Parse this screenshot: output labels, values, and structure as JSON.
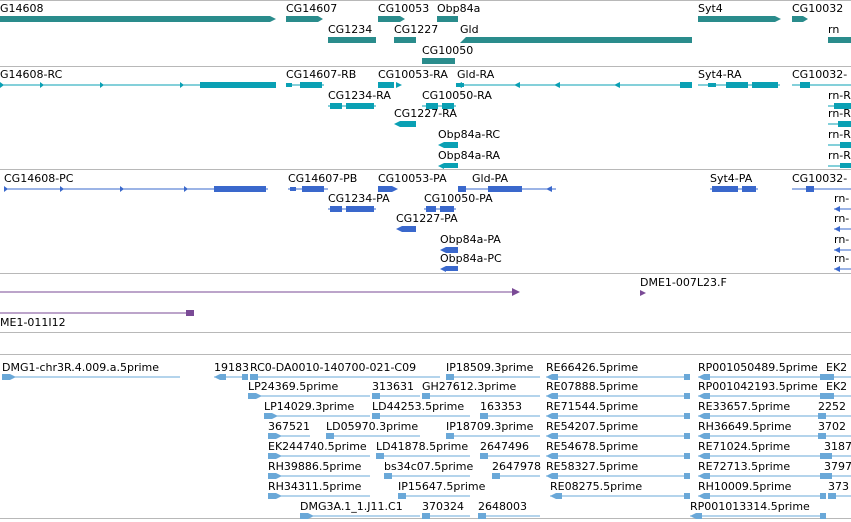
{
  "colors": {
    "gene": "#2a8c8c",
    "transcript": "#0aa0b4",
    "protein": "#3a68cc",
    "clone": "#7a4a96",
    "est": "#6aa8d8",
    "separator": "#b8b8b8"
  },
  "tracks": {
    "genes": {
      "items": [
        {
          "label": "G14608"
        },
        {
          "label": "CG14607"
        },
        {
          "label": "CG10053"
        },
        {
          "label": "Obp84a"
        },
        {
          "label": "Syt4"
        },
        {
          "label": "CG10032"
        },
        {
          "label": "CG1234"
        },
        {
          "label": "CG1227"
        },
        {
          "label": "Gld"
        },
        {
          "label": "rn"
        },
        {
          "label": "CG10050"
        }
      ]
    },
    "transcripts": {
      "items": [
        {
          "label": "G14608-RC"
        },
        {
          "label": "CG14607-RB"
        },
        {
          "label": "CG10053-RA"
        },
        {
          "label": "Gld-RA"
        },
        {
          "label": "Syt4-RA"
        },
        {
          "label": "CG10032-"
        },
        {
          "label": "CG1234-RA"
        },
        {
          "label": "CG10050-RA"
        },
        {
          "label": "rn-R"
        },
        {
          "label": "CG1227-RA"
        },
        {
          "label": "rn-R"
        },
        {
          "label": "Obp84a-RC"
        },
        {
          "label": "rn-R"
        },
        {
          "label": "Obp84a-RA"
        },
        {
          "label": "rn-R"
        }
      ]
    },
    "proteins": {
      "items": [
        {
          "label": "CG14608-PC"
        },
        {
          "label": "CG14607-PB"
        },
        {
          "label": "CG10053-PA"
        },
        {
          "label": "Gld-PA"
        },
        {
          "label": "Syt4-PA"
        },
        {
          "label": "CG10032-"
        },
        {
          "label": "CG1234-PA"
        },
        {
          "label": "CG10050-PA"
        },
        {
          "label": "rn-"
        },
        {
          "label": "CG1227-PA"
        },
        {
          "label": "rn-"
        },
        {
          "label": "Obp84a-PA"
        },
        {
          "label": "rn-"
        },
        {
          "label": "Obp84a-PC"
        },
        {
          "label": "rn-"
        }
      ]
    },
    "clones": {
      "items": [
        {
          "label": "DME1-007L23.F"
        },
        {
          "label": "ME1-011I12"
        }
      ]
    },
    "ests": {
      "items": [
        {
          "label": "DMG1-chr3R.4.009.a.5prime"
        },
        {
          "label": "19183"
        },
        {
          "label": "RC0-DA0010-140700-021-C09"
        },
        {
          "label": "IP18509.3prime"
        },
        {
          "label": "RE66426.5prime"
        },
        {
          "label": "RP001050489.5prime"
        },
        {
          "label": "EK2"
        },
        {
          "label": "LP24369.5prime"
        },
        {
          "label": "313631"
        },
        {
          "label": "GH27612.3prime"
        },
        {
          "label": "RE07888.5prime"
        },
        {
          "label": "RP001042193.5prime"
        },
        {
          "label": "EK2"
        },
        {
          "label": "LP14029.3prime"
        },
        {
          "label": "LD44253.5prime"
        },
        {
          "label": "163353"
        },
        {
          "label": "RE71544.5prime"
        },
        {
          "label": "RE33657.5prime"
        },
        {
          "label": "2252"
        },
        {
          "label": "367521"
        },
        {
          "label": "LD05970.3prime"
        },
        {
          "label": "IP18709.3prime"
        },
        {
          "label": "RE54207.5prime"
        },
        {
          "label": "RH36649.5prime"
        },
        {
          "label": "3702"
        },
        {
          "label": "EK244740.5prime"
        },
        {
          "label": "LD41878.5prime"
        },
        {
          "label": "2647496"
        },
        {
          "label": "RE54678.5prime"
        },
        {
          "label": "RE71024.5prime"
        },
        {
          "label": "3187"
        },
        {
          "label": "RH39886.5prime"
        },
        {
          "label": "bs34c07.5prime"
        },
        {
          "label": "2647978"
        },
        {
          "label": "RE58327.5prime"
        },
        {
          "label": "RE72713.5prime"
        },
        {
          "label": "3797"
        },
        {
          "label": "RH34311.5prime"
        },
        {
          "label": "IP15647.5prime"
        },
        {
          "label": "RE08275.5prime"
        },
        {
          "label": "RH10009.5prime"
        },
        {
          "label": "373"
        },
        {
          "label": "DMG3A.1_1.J11.C1"
        },
        {
          "label": "370324"
        },
        {
          "label": "2648003"
        },
        {
          "label": "RP001013314.5prime"
        }
      ]
    }
  }
}
